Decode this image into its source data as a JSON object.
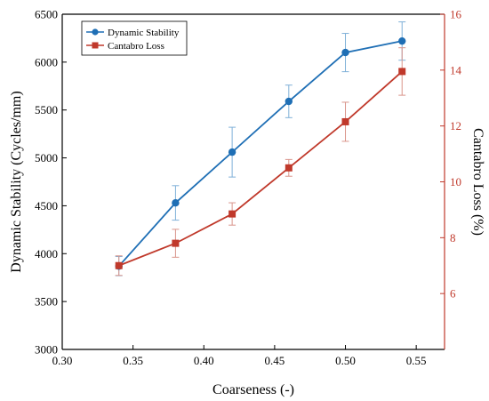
{
  "chart_data": {
    "type": "line",
    "x": [
      0.34,
      0.38,
      0.42,
      0.46,
      0.5,
      0.54
    ],
    "xlabel": "Coarseness (-)",
    "xlim": [
      0.3,
      0.57
    ],
    "xticks": [
      0.3,
      0.35,
      0.4,
      0.45,
      0.5,
      0.55
    ],
    "xtick_labels": [
      "0.30",
      "0.35",
      "0.40",
      "0.45",
      "0.50",
      "0.55"
    ],
    "y_left": {
      "label": "Dynamic Stability (Cycles/mm)",
      "lim": [
        3000,
        6500
      ],
      "ticks": [
        3000,
        3500,
        4000,
        4500,
        5000,
        5500,
        6000,
        6500
      ],
      "tick_labels": [
        "3000",
        "3500",
        "4000",
        "4500",
        "5000",
        "5500",
        "6000",
        "6500"
      ],
      "color": "#000000"
    },
    "y_right": {
      "label": "Cantabro Loss (%)",
      "lim": [
        4,
        16
      ],
      "ticks": [
        6,
        8,
        10,
        12,
        14,
        16
      ],
      "tick_labels": [
        "6",
        "8",
        "10",
        "12",
        "14",
        "16"
      ],
      "color": "#c0392b"
    },
    "series": [
      {
        "name": "Dynamic Stability",
        "axis": "left",
        "color": "#1f6fb5",
        "marker": "circle",
        "values": [
          3870,
          4530,
          5060,
          5590,
          6100,
          6220
        ],
        "errors": [
          100,
          180,
          260,
          170,
          200,
          200
        ]
      },
      {
        "name": "Cantabro Loss",
        "axis": "right",
        "color": "#c0392b",
        "marker": "square",
        "values": [
          7.0,
          7.8,
          8.85,
          10.5,
          12.15,
          13.95
        ],
        "errors": [
          0.35,
          0.5,
          0.4,
          0.3,
          0.7,
          0.85
        ]
      }
    ],
    "legend": {
      "placement": "top-left"
    },
    "grid": false
  }
}
